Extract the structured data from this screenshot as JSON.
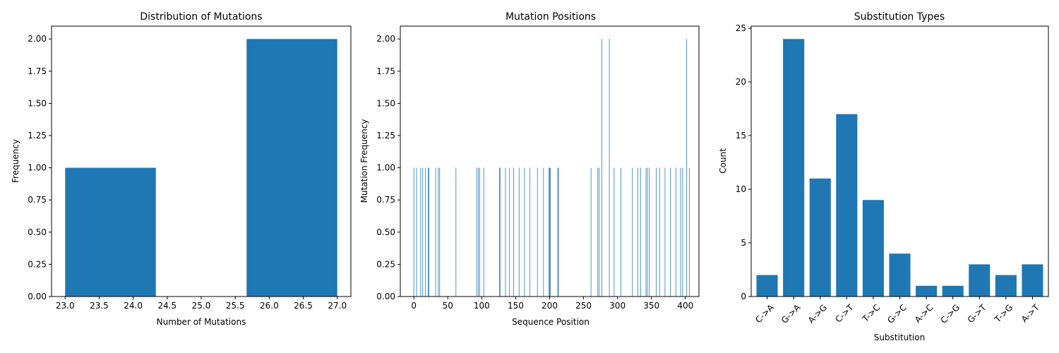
{
  "colors": {
    "bar": "#1f77b4",
    "axis": "#000000",
    "background": "#ffffff"
  },
  "chart_data": [
    {
      "type": "bar",
      "title": "Distribution of Mutations",
      "xlabel": "Number of Mutations",
      "ylabel": "Frequency",
      "xlim": [
        22.8,
        27.2
      ],
      "ylim": [
        0,
        2.1
      ],
      "xticks": [
        23.0,
        23.5,
        24.0,
        24.5,
        25.0,
        25.5,
        26.0,
        26.5,
        27.0
      ],
      "xtick_labels": [
        "23.0",
        "23.5",
        "24.0",
        "24.5",
        "25.0",
        "25.5",
        "26.0",
        "26.5",
        "27.0"
      ],
      "yticks": [
        0,
        0.25,
        0.5,
        0.75,
        1.0,
        1.25,
        1.5,
        1.75,
        2.0
      ],
      "ytick_labels": [
        "0.00",
        "0.25",
        "0.50",
        "0.75",
        "1.00",
        "1.25",
        "1.50",
        "1.75",
        "2.00"
      ],
      "bins": [
        {
          "start": 23.0,
          "end": 24.333,
          "value": 1
        },
        {
          "start": 24.333,
          "end": 25.667,
          "value": 0
        },
        {
          "start": 25.667,
          "end": 27.0,
          "value": 2
        }
      ],
      "grid": false
    },
    {
      "type": "bar",
      "title": "Mutation Positions",
      "xlabel": "Sequence Position",
      "ylabel": "Mutation Frequency",
      "xlim": [
        -20,
        420
      ],
      "ylim": [
        0,
        2.1
      ],
      "xticks": [
        0,
        50,
        100,
        150,
        200,
        250,
        300,
        350,
        400
      ],
      "xtick_labels": [
        "0",
        "50",
        "100",
        "150",
        "200",
        "250",
        "300",
        "350",
        "400"
      ],
      "yticks": [
        0,
        0.25,
        0.5,
        0.75,
        1.0,
        1.25,
        1.5,
        1.75,
        2.0
      ],
      "ytick_labels": [
        "0.00",
        "0.25",
        "0.50",
        "0.75",
        "1.00",
        "1.25",
        "1.50",
        "1.75",
        "2.00"
      ],
      "x": [
        0,
        4,
        10,
        13,
        17,
        21,
        22,
        32,
        36,
        38,
        62,
        93,
        95,
        97,
        103,
        126,
        127,
        135,
        141,
        147,
        155,
        163,
        171,
        182,
        191,
        199,
        200,
        201,
        212,
        213,
        261,
        271,
        273,
        277,
        288,
        295,
        305,
        322,
        330,
        334,
        342,
        344,
        347,
        357,
        362,
        370,
        378,
        386,
        393,
        396,
        402,
        406
      ],
      "values": [
        1,
        1,
        1,
        1,
        1,
        1,
        1,
        1,
        1,
        1,
        1,
        1,
        1,
        1,
        1,
        1,
        1,
        1,
        1,
        1,
        1,
        1,
        1,
        1,
        1,
        1,
        1,
        1,
        1,
        1,
        1,
        1,
        1,
        2,
        2,
        1,
        1,
        1,
        1,
        1,
        1,
        1,
        1,
        1,
        1,
        1,
        1,
        1,
        1,
        1,
        2,
        1
      ],
      "grid": false
    },
    {
      "type": "bar",
      "title": "Substitution Types",
      "xlabel": "Substitution",
      "ylabel": "Count",
      "ylim": [
        0,
        25.2
      ],
      "yticks": [
        0,
        5,
        10,
        15,
        20,
        25
      ],
      "ytick_labels": [
        "0",
        "5",
        "10",
        "15",
        "20",
        "25"
      ],
      "categories": [
        "C->A",
        "G->A",
        "A->G",
        "C->T",
        "T->C",
        "G->C",
        "A->C",
        "C->G",
        "G->T",
        "T->G",
        "A->T"
      ],
      "values": [
        2,
        24,
        11,
        17,
        9,
        4,
        1,
        1,
        3,
        2,
        3
      ],
      "grid": false
    }
  ]
}
